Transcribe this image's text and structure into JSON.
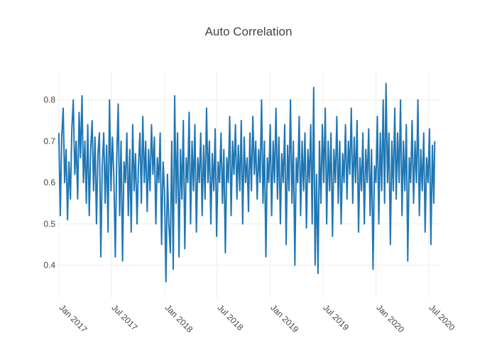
{
  "chart_data": {
    "type": "line",
    "title": "Auto Correlation",
    "xlabel": "",
    "ylabel": "",
    "x_range": [
      "2016-12-25",
      "2020-08-10"
    ],
    "ylim": [
      0.32,
      0.87
    ],
    "grid": true,
    "y_ticks": [
      0.4,
      0.5,
      0.6,
      0.7,
      0.8
    ],
    "y_tick_labels": [
      "0.4",
      "0.5",
      "0.6",
      "0.7",
      "0.8"
    ],
    "x_ticks": [
      "2017-01-01",
      "2017-07-01",
      "2018-01-01",
      "2018-07-01",
      "2019-01-01",
      "2019-07-01",
      "2020-01-01",
      "2020-07-01"
    ],
    "x_tick_labels": [
      "Jan 2017",
      "Jul 2017",
      "Jan 2018",
      "Jul 2018",
      "Jan 2019",
      "Jul 2019",
      "Jan 2020",
      "Jul 2020"
    ],
    "series": [
      {
        "color": "#1f77b4",
        "points": [
          [
            "2017-01-01",
            0.72
          ],
          [
            "2017-01-06",
            0.52
          ],
          [
            "2017-01-11",
            0.71
          ],
          [
            "2017-01-16",
            0.78
          ],
          [
            "2017-01-21",
            0.6
          ],
          [
            "2017-01-26",
            0.68
          ],
          [
            "2017-01-31",
            0.51
          ],
          [
            "2017-02-05",
            0.65
          ],
          [
            "2017-02-10",
            0.56
          ],
          [
            "2017-02-15",
            0.73
          ],
          [
            "2017-02-20",
            0.8
          ],
          [
            "2017-02-25",
            0.62
          ],
          [
            "2017-03-02",
            0.7
          ],
          [
            "2017-03-07",
            0.56
          ],
          [
            "2017-03-12",
            0.77
          ],
          [
            "2017-03-17",
            0.66
          ],
          [
            "2017-03-22",
            0.81
          ],
          [
            "2017-03-27",
            0.6
          ],
          [
            "2017-04-01",
            0.7
          ],
          [
            "2017-04-06",
            0.55
          ],
          [
            "2017-04-11",
            0.74
          ],
          [
            "2017-04-16",
            0.52
          ],
          [
            "2017-04-21",
            0.68
          ],
          [
            "2017-04-26",
            0.75
          ],
          [
            "2017-05-01",
            0.58
          ],
          [
            "2017-05-06",
            0.71
          ],
          [
            "2017-05-11",
            0.5
          ],
          [
            "2017-05-16",
            0.67
          ],
          [
            "2017-05-21",
            0.72
          ],
          [
            "2017-05-26",
            0.42
          ],
          [
            "2017-05-31",
            0.64
          ],
          [
            "2017-06-05",
            0.72
          ],
          [
            "2017-06-10",
            0.55
          ],
          [
            "2017-06-15",
            0.69
          ],
          [
            "2017-06-20",
            0.48
          ],
          [
            "2017-06-25",
            0.8
          ],
          [
            "2017-06-30",
            0.58
          ],
          [
            "2017-07-05",
            0.71
          ],
          [
            "2017-07-10",
            0.62
          ],
          [
            "2017-07-15",
            0.42
          ],
          [
            "2017-07-20",
            0.66
          ],
          [
            "2017-07-25",
            0.79
          ],
          [
            "2017-07-30",
            0.52
          ],
          [
            "2017-08-04",
            0.7
          ],
          [
            "2017-08-09",
            0.41
          ],
          [
            "2017-08-14",
            0.65
          ],
          [
            "2017-08-19",
            0.6
          ],
          [
            "2017-08-24",
            0.72
          ],
          [
            "2017-08-29",
            0.52
          ],
          [
            "2017-09-03",
            0.68
          ],
          [
            "2017-09-08",
            0.48
          ],
          [
            "2017-09-13",
            0.74
          ],
          [
            "2017-09-18",
            0.58
          ],
          [
            "2017-09-23",
            0.67
          ],
          [
            "2017-09-28",
            0.5
          ],
          [
            "2017-10-03",
            0.64
          ],
          [
            "2017-10-08",
            0.72
          ],
          [
            "2017-10-13",
            0.55
          ],
          [
            "2017-10-18",
            0.76
          ],
          [
            "2017-10-23",
            0.6
          ],
          [
            "2017-10-28",
            0.7
          ],
          [
            "2017-11-02",
            0.53
          ],
          [
            "2017-11-07",
            0.68
          ],
          [
            "2017-11-12",
            0.58
          ],
          [
            "2017-11-17",
            0.74
          ],
          [
            "2017-11-22",
            0.62
          ],
          [
            "2017-11-27",
            0.71
          ],
          [
            "2017-12-02",
            0.5
          ],
          [
            "2017-12-07",
            0.66
          ],
          [
            "2017-12-12",
            0.6
          ],
          [
            "2017-12-17",
            0.72
          ],
          [
            "2017-12-22",
            0.45
          ],
          [
            "2017-12-27",
            0.65
          ],
          [
            "2018-01-01",
            0.58
          ],
          [
            "2018-01-06",
            0.36
          ],
          [
            "2018-01-11",
            0.62
          ],
          [
            "2018-01-16",
            0.5
          ],
          [
            "2018-01-21",
            0.43
          ],
          [
            "2018-01-26",
            0.7
          ],
          [
            "2018-01-31",
            0.39
          ],
          [
            "2018-02-05",
            0.81
          ],
          [
            "2018-02-10",
            0.55
          ],
          [
            "2018-02-15",
            0.72
          ],
          [
            "2018-02-20",
            0.42
          ],
          [
            "2018-02-25",
            0.68
          ],
          [
            "2018-03-02",
            0.56
          ],
          [
            "2018-03-07",
            0.75
          ],
          [
            "2018-03-12",
            0.44
          ],
          [
            "2018-03-17",
            0.66
          ],
          [
            "2018-03-22",
            0.6
          ],
          [
            "2018-03-27",
            0.77
          ],
          [
            "2018-04-01",
            0.5
          ],
          [
            "2018-04-06",
            0.7
          ],
          [
            "2018-04-11",
            0.58
          ],
          [
            "2018-04-16",
            0.74
          ],
          [
            "2018-04-21",
            0.48
          ],
          [
            "2018-04-26",
            0.66
          ],
          [
            "2018-05-01",
            0.6
          ],
          [
            "2018-05-06",
            0.72
          ],
          [
            "2018-05-11",
            0.52
          ],
          [
            "2018-05-16",
            0.69
          ],
          [
            "2018-05-21",
            0.56
          ],
          [
            "2018-05-26",
            0.78
          ],
          [
            "2018-05-31",
            0.6
          ],
          [
            "2018-06-05",
            0.7
          ],
          [
            "2018-06-10",
            0.5
          ],
          [
            "2018-06-15",
            0.67
          ],
          [
            "2018-06-20",
            0.58
          ],
          [
            "2018-06-25",
            0.73
          ],
          [
            "2018-06-30",
            0.47
          ],
          [
            "2018-07-05",
            0.65
          ],
          [
            "2018-07-10",
            0.6
          ],
          [
            "2018-07-15",
            0.72
          ],
          [
            "2018-07-20",
            0.55
          ],
          [
            "2018-07-25",
            0.68
          ],
          [
            "2018-07-30",
            0.43
          ],
          [
            "2018-08-04",
            0.66
          ],
          [
            "2018-08-09",
            0.6
          ],
          [
            "2018-08-14",
            0.76
          ],
          [
            "2018-08-19",
            0.52
          ],
          [
            "2018-08-24",
            0.7
          ],
          [
            "2018-08-29",
            0.62
          ],
          [
            "2018-09-03",
            0.74
          ],
          [
            "2018-09-08",
            0.56
          ],
          [
            "2018-09-13",
            0.69
          ],
          [
            "2018-09-18",
            0.58
          ],
          [
            "2018-09-23",
            0.75
          ],
          [
            "2018-09-28",
            0.5
          ],
          [
            "2018-10-03",
            0.71
          ],
          [
            "2018-10-08",
            0.6
          ],
          [
            "2018-10-13",
            0.66
          ],
          [
            "2018-10-18",
            0.53
          ],
          [
            "2018-10-23",
            0.72
          ],
          [
            "2018-10-28",
            0.58
          ],
          [
            "2018-11-02",
            0.76
          ],
          [
            "2018-11-07",
            0.62
          ],
          [
            "2018-11-12",
            0.7
          ],
          [
            "2018-11-17",
            0.56
          ],
          [
            "2018-11-22",
            0.68
          ],
          [
            "2018-11-27",
            0.6
          ],
          [
            "2018-12-02",
            0.8
          ],
          [
            "2018-12-07",
            0.55
          ],
          [
            "2018-12-12",
            0.7
          ],
          [
            "2018-12-17",
            0.42
          ],
          [
            "2018-12-22",
            0.66
          ],
          [
            "2018-12-27",
            0.6
          ],
          [
            "2019-01-01",
            0.74
          ],
          [
            "2019-01-06",
            0.52
          ],
          [
            "2019-01-11",
            0.7
          ],
          [
            "2019-01-16",
            0.6
          ],
          [
            "2019-01-21",
            0.78
          ],
          [
            "2019-01-26",
            0.56
          ],
          [
            "2019-01-31",
            0.71
          ],
          [
            "2019-02-05",
            0.5
          ],
          [
            "2019-02-10",
            0.67
          ],
          [
            "2019-02-15",
            0.6
          ],
          [
            "2019-02-20",
            0.74
          ],
          [
            "2019-02-25",
            0.45
          ],
          [
            "2019-03-02",
            0.69
          ],
          [
            "2019-03-07",
            0.58
          ],
          [
            "2019-03-12",
            0.8
          ],
          [
            "2019-03-17",
            0.55
          ],
          [
            "2019-03-22",
            0.7
          ],
          [
            "2019-03-27",
            0.4
          ],
          [
            "2019-04-01",
            0.66
          ],
          [
            "2019-04-06",
            0.6
          ],
          [
            "2019-04-11",
            0.76
          ],
          [
            "2019-04-16",
            0.52
          ],
          [
            "2019-04-21",
            0.7
          ],
          [
            "2019-04-26",
            0.58
          ],
          [
            "2019-05-01",
            0.72
          ],
          [
            "2019-05-06",
            0.49
          ],
          [
            "2019-05-11",
            0.68
          ],
          [
            "2019-05-16",
            0.6
          ],
          [
            "2019-05-21",
            0.74
          ],
          [
            "2019-05-26",
            0.5
          ],
          [
            "2019-05-31",
            0.83
          ],
          [
            "2019-06-05",
            0.4
          ],
          [
            "2019-06-10",
            0.62
          ],
          [
            "2019-06-15",
            0.38
          ],
          [
            "2019-06-20",
            0.7
          ],
          [
            "2019-06-25",
            0.55
          ],
          [
            "2019-06-30",
            0.74
          ],
          [
            "2019-07-05",
            0.6
          ],
          [
            "2019-07-10",
            0.78
          ],
          [
            "2019-07-15",
            0.5
          ],
          [
            "2019-07-20",
            0.7
          ],
          [
            "2019-07-25",
            0.58
          ],
          [
            "2019-07-30",
            0.72
          ],
          [
            "2019-08-04",
            0.47
          ],
          [
            "2019-08-09",
            0.68
          ],
          [
            "2019-08-14",
            0.6
          ],
          [
            "2019-08-19",
            0.76
          ],
          [
            "2019-08-24",
            0.55
          ],
          [
            "2019-08-29",
            0.7
          ],
          [
            "2019-09-03",
            0.5
          ],
          [
            "2019-09-08",
            0.67
          ],
          [
            "2019-09-13",
            0.6
          ],
          [
            "2019-09-18",
            0.74
          ],
          [
            "2019-09-23",
            0.56
          ],
          [
            "2019-09-28",
            0.7
          ],
          [
            "2019-10-03",
            0.62
          ],
          [
            "2019-10-08",
            0.78
          ],
          [
            "2019-10-13",
            0.55
          ],
          [
            "2019-10-18",
            0.71
          ],
          [
            "2019-10-23",
            0.6
          ],
          [
            "2019-10-28",
            0.75
          ],
          [
            "2019-11-02",
            0.48
          ],
          [
            "2019-11-07",
            0.66
          ],
          [
            "2019-11-12",
            0.58
          ],
          [
            "2019-11-17",
            0.72
          ],
          [
            "2019-11-22",
            0.5
          ],
          [
            "2019-11-27",
            0.68
          ],
          [
            "2019-12-02",
            0.6
          ],
          [
            "2019-12-07",
            0.73
          ],
          [
            "2019-12-12",
            0.52
          ],
          [
            "2019-12-17",
            0.68
          ],
          [
            "2019-12-22",
            0.39
          ],
          [
            "2019-12-27",
            0.64
          ],
          [
            "2020-01-01",
            0.6
          ],
          [
            "2020-01-06",
            0.76
          ],
          [
            "2020-01-11",
            0.5
          ],
          [
            "2020-01-16",
            0.72
          ],
          [
            "2020-01-21",
            0.58
          ],
          [
            "2020-01-26",
            0.8
          ],
          [
            "2020-01-31",
            0.55
          ],
          [
            "2020-02-05",
            0.84
          ],
          [
            "2020-02-10",
            0.6
          ],
          [
            "2020-02-15",
            0.72
          ],
          [
            "2020-02-20",
            0.45
          ],
          [
            "2020-02-25",
            0.7
          ],
          [
            "2020-03-01",
            0.58
          ],
          [
            "2020-03-06",
            0.78
          ],
          [
            "2020-03-11",
            0.56
          ],
          [
            "2020-03-16",
            0.72
          ],
          [
            "2020-03-21",
            0.6
          ],
          [
            "2020-03-26",
            0.8
          ],
          [
            "2020-03-31",
            0.52
          ],
          [
            "2020-04-05",
            0.7
          ],
          [
            "2020-04-10",
            0.58
          ],
          [
            "2020-04-15",
            0.74
          ],
          [
            "2020-04-20",
            0.41
          ],
          [
            "2020-04-25",
            0.66
          ],
          [
            "2020-04-30",
            0.6
          ],
          [
            "2020-05-05",
            0.75
          ],
          [
            "2020-05-10",
            0.55
          ],
          [
            "2020-05-15",
            0.7
          ],
          [
            "2020-05-20",
            0.6
          ],
          [
            "2020-05-25",
            0.8
          ],
          [
            "2020-05-30",
            0.52
          ],
          [
            "2020-06-04",
            0.68
          ],
          [
            "2020-06-09",
            0.58
          ],
          [
            "2020-06-14",
            0.72
          ],
          [
            "2020-06-19",
            0.48
          ],
          [
            "2020-06-24",
            0.66
          ],
          [
            "2020-06-29",
            0.6
          ],
          [
            "2020-07-04",
            0.73
          ],
          [
            "2020-07-09",
            0.45
          ],
          [
            "2020-07-14",
            0.69
          ],
          [
            "2020-07-19",
            0.55
          ],
          [
            "2020-07-22",
            0.7
          ]
        ]
      }
    ]
  }
}
